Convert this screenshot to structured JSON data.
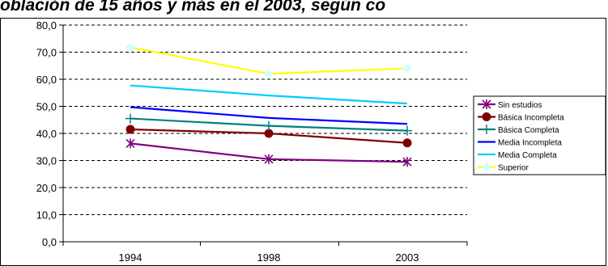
{
  "chart_data": {
    "type": "line",
    "title": "oblación de 15 años y más en el 2003, según co",
    "xlabel": "",
    "ylabel": "",
    "categories": [
      "1994",
      "1998",
      "2003"
    ],
    "y_ticks": [
      "0,0",
      "10,0",
      "20,0",
      "30,0",
      "40,0",
      "50,0",
      "60,0",
      "70,0",
      "80,0"
    ],
    "ylim": [
      0,
      80
    ],
    "grid": "horizontal dashed",
    "legend_position": "right",
    "series": [
      {
        "name": "Sin estudios",
        "values": [
          36.3,
          30.5,
          29.5
        ],
        "color": "#800080",
        "marker": "star"
      },
      {
        "name": "Básica Incompleta",
        "values": [
          41.5,
          40.0,
          36.5
        ],
        "color": "#800000",
        "marker": "circle"
      },
      {
        "name": "Básica Completa",
        "values": [
          45.5,
          42.8,
          41.0
        ],
        "color": "#008080",
        "marker": "plus"
      },
      {
        "name": "Media Incompleta",
        "values": [
          49.7,
          45.7,
          43.5
        ],
        "color": "#0000ff",
        "marker": "none"
      },
      {
        "name": "Media Completa",
        "values": [
          57.7,
          54.0,
          51.0
        ],
        "color": "#00ccff",
        "marker": "none"
      },
      {
        "name": "Superior",
        "values": [
          71.8,
          62.0,
          64.0
        ],
        "color": "#ffff00",
        "marker": "diamond"
      }
    ]
  }
}
